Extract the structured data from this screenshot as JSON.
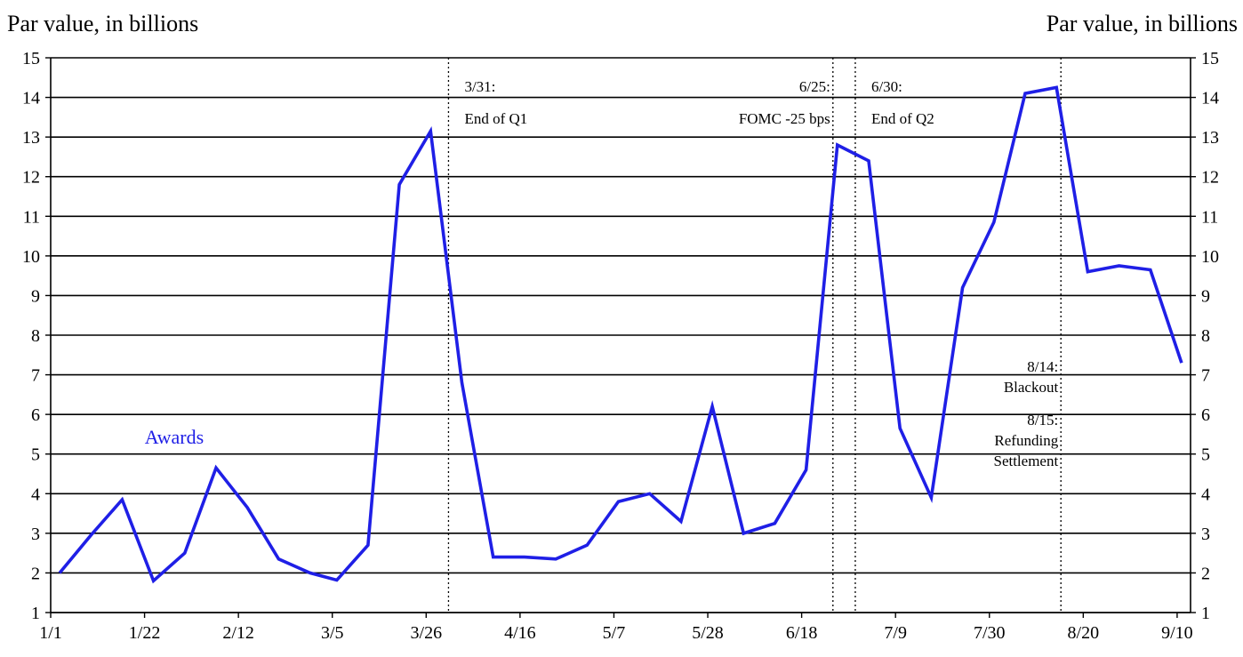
{
  "chart_data": {
    "type": "line",
    "ylabel_left": "Par value, in billions",
    "ylabel_right": "Par value, in billions",
    "ylim": [
      1,
      15
    ],
    "yticks": [
      1,
      2,
      3,
      4,
      5,
      6,
      7,
      8,
      9,
      10,
      11,
      12,
      13,
      14,
      15
    ],
    "xlim": [
      "1/1",
      "9/13"
    ],
    "xticks": [
      "1/1",
      "1/22",
      "2/12",
      "3/5",
      "3/26",
      "4/16",
      "5/7",
      "5/28",
      "6/18",
      "7/9",
      "7/30",
      "8/20",
      "9/10"
    ],
    "grid": "horizontal",
    "color": "#1f1fe6",
    "series": [
      {
        "name": "Awards",
        "x": [
          "1/3",
          "1/10",
          "1/17",
          "1/24",
          "1/31",
          "2/7",
          "2/14",
          "2/21",
          "2/28",
          "3/6",
          "3/13",
          "3/20",
          "3/27",
          "4/3",
          "4/10",
          "4/17",
          "4/24",
          "5/1",
          "5/8",
          "5/15",
          "5/22",
          "5/29",
          "6/5",
          "6/12",
          "6/19",
          "6/26",
          "7/3",
          "7/10",
          "7/17",
          "7/24",
          "7/31",
          "8/7",
          "8/14",
          "8/21",
          "8/28",
          "9/4",
          "9/11"
        ],
        "values": [
          2.0,
          2.95,
          3.85,
          1.8,
          2.5,
          4.65,
          3.65,
          2.35,
          2.0,
          1.82,
          2.7,
          11.8,
          13.15,
          6.8,
          2.4,
          2.4,
          2.35,
          2.7,
          3.8,
          4.0,
          3.3,
          6.2,
          3.0,
          3.25,
          4.6,
          12.8,
          12.4,
          5.65,
          3.9,
          9.2,
          10.85,
          14.1,
          14.25,
          9.6,
          9.75,
          9.65,
          7.3
        ]
      }
    ],
    "vlines": [
      {
        "x": "3/31",
        "lines": [
          "3/31:",
          "End of Q1"
        ],
        "anchor": "start"
      },
      {
        "x": "6/25",
        "lines": [
          "6/25:",
          "FOMC -25 bps"
        ],
        "anchor": "end"
      },
      {
        "x": "6/30",
        "lines": [
          "6/30:",
          "End of Q2"
        ],
        "anchor": "start"
      },
      {
        "x": "8/15",
        "lines": [
          "8/14:",
          "Blackout",
          "8/15:",
          "Refunding",
          "Settlement"
        ],
        "anchor": "end"
      }
    ]
  }
}
